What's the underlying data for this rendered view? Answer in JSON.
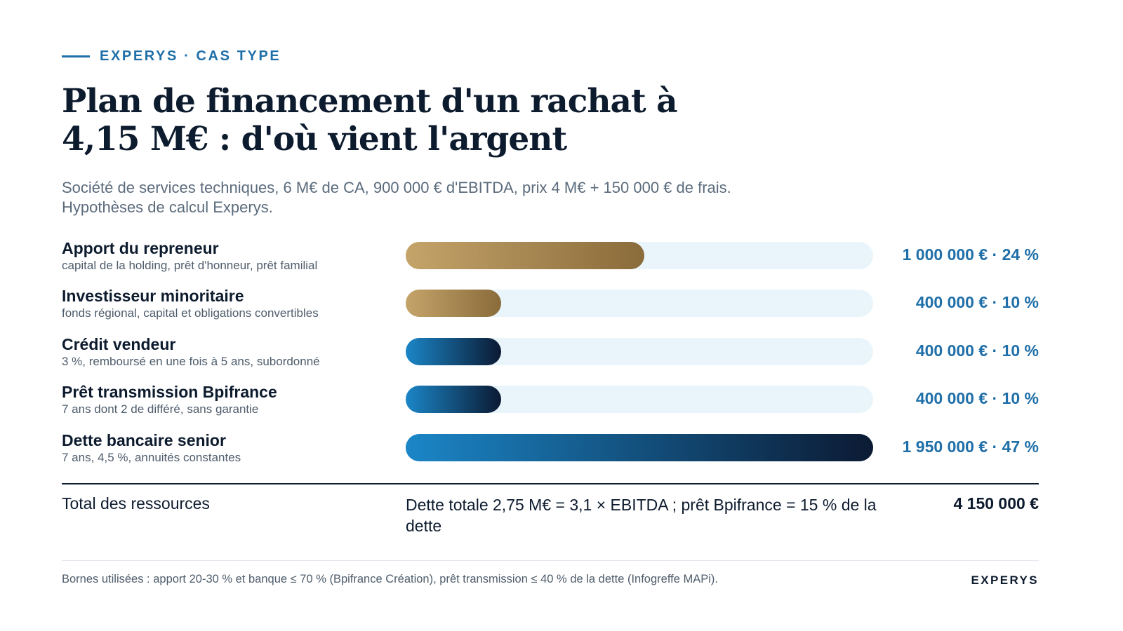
{
  "header": {
    "eyebrow": "EXPERYS · CAS TYPE",
    "title": "Plan de financement d'un rachat à 4,15 M€ : d'où vient l'argent",
    "subtitle": "Société de services techniques, 6 M€ de CA, 900 000 € d'EBITDA, prix 4 M€ + 150 000 € de frais. Hypothèses de calcul Experys."
  },
  "chart_data": {
    "type": "bar",
    "orientation": "horizontal",
    "title": "Plan de financement d'un rachat à 4,15 M€ : d'où vient l'argent",
    "xlim": [
      0,
      1950000
    ],
    "categories": [
      "Apport du repreneur",
      "Investisseur minoritaire",
      "Crédit vendeur",
      "Prêt transmission Bpifrance",
      "Dette bancaire senior"
    ],
    "descriptions": [
      "capital de la holding, prêt d'honneur, prêt familial",
      "fonds régional, capital et obligations convertibles",
      "3 %, remboursé en une fois à 5 ans, subordonné",
      "7 ans dont 2 de différé, sans garantie",
      "7 ans, 4,5 %, annuités constantes"
    ],
    "values": [
      1000000,
      400000,
      400000,
      400000,
      1950000
    ],
    "shares_percent": [
      24,
      10,
      10,
      10,
      47
    ],
    "value_labels": [
      "1 000 000 € · 24 %",
      "400 000 € · 10 %",
      "400 000 € · 10 %",
      "400 000 € · 10 %",
      "1 950 000 € · 47 %"
    ],
    "bar_styles": [
      "gold",
      "gold",
      "blue",
      "blue",
      "blue"
    ]
  },
  "colors": {
    "accent": "#1f6fa8",
    "gold_start": "#c5a46a",
    "gold_end": "#8a6b3a",
    "blue_start": "#1b86c7",
    "blue_end": "#0b1a33",
    "track": "#e9f5fb",
    "ink": "#0d1b2e"
  },
  "total": {
    "label": "Total des ressources",
    "note": "Dette totale 2,75 M€ = 3,1 × EBITDA ; prêt Bpifrance = 15 % de la dette",
    "value": "4 150 000 €"
  },
  "footer": {
    "note": "Bornes utilisées : apport 20-30 % et banque ≤ 70 % (Bpifrance Création), prêt transmission ≤ 40 % de la dette (Infogreffe MAPi).",
    "brand": "EXPERYS"
  }
}
